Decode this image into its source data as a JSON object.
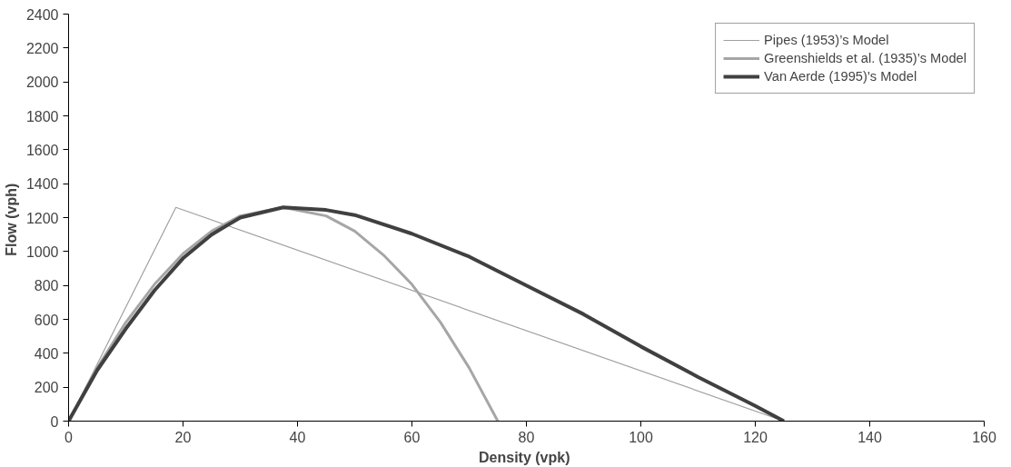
{
  "chart_data": {
    "type": "line",
    "xlabel": "Density  (vpk)",
    "ylabel": "Flow  (vph)",
    "xlim": [
      0,
      160
    ],
    "ylim": [
      0,
      2400
    ],
    "xticks": [
      0,
      20,
      40,
      60,
      80,
      100,
      120,
      140,
      160
    ],
    "yticks": [
      0,
      200,
      400,
      600,
      800,
      1000,
      1200,
      1400,
      1600,
      1800,
      2000,
      2200,
      2400
    ],
    "grid": false,
    "legend": "top right",
    "marker": "none",
    "line_style": "solid",
    "series": [
      {
        "name": "Pipes (1953)’s Model",
        "color": "#a0a0a0",
        "x": [
          0,
          18.75,
          125
        ],
        "values": [
          0,
          1260,
          0
        ]
      },
      {
        "name": "Greenshields et al. (1935)’s Model",
        "color": "#a6a6a6",
        "x": [
          0,
          5,
          10,
          15,
          20,
          25,
          30,
          37.5,
          45,
          50,
          55,
          60,
          65,
          70,
          75
        ],
        "values": [
          0,
          314,
          582,
          806,
          987,
          1120,
          1210,
          1260,
          1210,
          1120,
          980,
          806,
          582,
          314,
          0
        ]
      },
      {
        "name": "Van Aerde (1995)’s Model",
        "color": "#404040",
        "x": [
          0,
          5,
          10,
          15,
          20,
          25,
          30,
          37.5,
          45,
          50,
          60,
          70,
          80,
          90,
          100,
          110,
          120,
          125
        ],
        "values": [
          0,
          300,
          545,
          770,
          960,
          1100,
          1200,
          1260,
          1245,
          1215,
          1105,
          970,
          800,
          630,
          440,
          260,
          90,
          0
        ]
      }
    ]
  }
}
